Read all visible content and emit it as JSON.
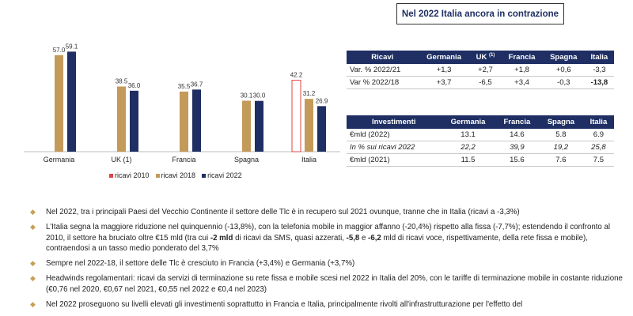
{
  "chart_data": {
    "type": "bar",
    "categories": [
      "Germania",
      "UK (1)",
      "Francia",
      "Spagna",
      "Italia"
    ],
    "series": [
      {
        "name": "ricavi 2010",
        "values": [
          null,
          null,
          null,
          null,
          42.2
        ]
      },
      {
        "name": "ricavi 2018",
        "values": [
          57.0,
          38.5,
          35.5,
          30.1,
          31.2
        ]
      },
      {
        "name": "ricavi 2022",
        "values": [
          59.1,
          36.0,
          36.7,
          30.0,
          26.9
        ]
      }
    ],
    "value_labels": [
      [
        "",
        "",
        "",
        "",
        "42.2"
      ],
      [
        "57.0",
        "38.5",
        "35.5",
        "30.1",
        "31.2"
      ],
      [
        "59.1",
        "36.0",
        "36.7",
        "30.0",
        "26.9"
      ]
    ],
    "colors": {
      "ricavi 2010": "#e04545",
      "ricavi 2018": "#c49a5a",
      "ricavi 2022": "#1f2f63"
    },
    "ylim": [
      0,
      70
    ],
    "grid": false,
    "legend_position": "bottom"
  },
  "title_box": "Nel 2022 Italia ancora in contrazione",
  "ricavi_table": {
    "headers": [
      "Ricavi",
      "Germania",
      "UK",
      "Francia",
      "Spagna",
      "Italia"
    ],
    "uk_sup": "(1)",
    "rows": [
      {
        "label": "Var. % 2022/21",
        "values": [
          "+1,3",
          "+2,7",
          "+1,8",
          "+0,6",
          "-3,3"
        ]
      },
      {
        "label": "Var % 2022/18",
        "values": [
          "+3,7",
          "-6,5",
          "+3,4",
          "-0,3",
          "-13,8"
        ]
      }
    ]
  },
  "investimenti_table": {
    "headers": [
      "Investimenti",
      "Germania",
      "Francia",
      "Spagna",
      "Italia"
    ],
    "rows": [
      {
        "label": "€mld (2022)",
        "values": [
          "13.1",
          "14.6",
          "5.8",
          "6.9"
        ]
      },
      {
        "label": "In % sui ricavi 2022",
        "values": [
          "22,2",
          "39,9",
          "19,2",
          "25,8"
        ]
      },
      {
        "label": "€mld (2021)",
        "values": [
          "11.5",
          "15.6",
          "7.6",
          "7.5"
        ]
      }
    ]
  },
  "bullets": [
    {
      "t1": "Nel 2022, tra i principali Paesi del Vecchio Continente il settore delle Tlc è in recupero sul 2021 ovunque, tranne che in Italia (ricavi a -3,3%)"
    },
    {
      "t1": "L'Italia segna la maggiore riduzione nel quinquennio (-13,8%), con la telefonia mobile in maggior affanno (-20,4%) rispetto alla fissa (-7,7%); estendendo il confronto al 2010, il settore ha bruciato oltre €15 mld (tra cui ",
      "b1": "-2 mld",
      "t2": " di ricavi da SMS, quasi azzerati, ",
      "b2": "-5,8",
      "t3": " e ",
      "b3": "-6,2",
      "t4": " mld di ricavi voce, rispettivamente, della rete fissa e mobile), contraendosi a un tasso medio ponderato del 3,7%"
    },
    {
      "t1": "Sempre nel 2022-18, il settore delle Tlc è cresciuto in Francia (+3,4%) e Germania (+3,7%)"
    },
    {
      "t1": "Headwinds regolamentari: ricavi da servizi di terminazione su rete fissa e mobile scesi nel 2022 in Italia del 20%, con le tariffe di terminazione mobile in costante riduzione (€0,76 nel 2020, €0,67 nel 2021, €0,55 nel 2022 e €0,4 nel 2023)"
    },
    {
      "t1": "Nel 2022 proseguono su livelli elevati gli investimenti soprattutto in Francia e Italia, principalmente rivolti all'infrastrutturazione per l'effetto del"
    }
  ]
}
